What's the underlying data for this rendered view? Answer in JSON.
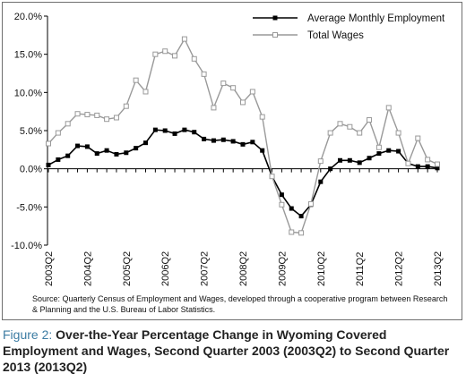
{
  "chart_data": {
    "type": "line",
    "x": [
      "2003Q2",
      "2003Q3",
      "2003Q4",
      "2004Q1",
      "2004Q2",
      "2004Q3",
      "2004Q4",
      "2005Q1",
      "2005Q2",
      "2005Q3",
      "2005Q4",
      "2006Q1",
      "2006Q2",
      "2006Q3",
      "2006Q4",
      "2007Q1",
      "2007Q2",
      "2007Q3",
      "2007Q4",
      "2008Q1",
      "2008Q2",
      "2008Q3",
      "2008Q4",
      "2009Q1",
      "2009Q2",
      "2009Q3",
      "2009Q4",
      "2010Q1",
      "2010Q2",
      "2010Q3",
      "2010Q4",
      "2011Q1",
      "2011Q2",
      "2011Q3",
      "2011Q4",
      "2012Q1",
      "2012Q2",
      "2012Q3",
      "2012Q4",
      "2013Q1",
      "2013Q2"
    ],
    "tick_labels": [
      "2003Q2",
      "2004Q2",
      "2005Q2",
      "2006Q2",
      "2007Q2",
      "2008Q2",
      "2009Q2",
      "2010Q2",
      "2011Q2",
      "2012Q2",
      "2013Q2"
    ],
    "series": [
      {
        "name": "Average Monthly Employment",
        "color": "#000000",
        "marker": "square-filled",
        "values": [
          0.5,
          1.2,
          1.7,
          3.0,
          2.9,
          2.0,
          2.4,
          1.9,
          2.1,
          2.7,
          3.4,
          5.1,
          5.0,
          4.6,
          5.1,
          4.8,
          3.9,
          3.7,
          3.8,
          3.6,
          3.2,
          3.5,
          2.4,
          -1.0,
          -3.4,
          -5.2,
          -6.2,
          -4.7,
          -1.7,
          0.0,
          1.1,
          1.1,
          0.8,
          1.4,
          2.0,
          2.4,
          2.3,
          0.7,
          0.3,
          0.3,
          0.1
        ]
      },
      {
        "name": "Total Wages",
        "color": "#999999",
        "marker": "square-hollow",
        "values": [
          3.3,
          4.7,
          5.9,
          7.2,
          7.1,
          7.0,
          6.5,
          6.7,
          8.2,
          11.6,
          10.1,
          15.0,
          15.4,
          14.8,
          17.0,
          14.4,
          12.4,
          8.0,
          11.2,
          10.6,
          8.7,
          10.1,
          6.8,
          -1.0,
          -4.7,
          -8.3,
          -8.4,
          -4.6,
          1.0,
          4.7,
          5.9,
          5.5,
          4.7,
          6.4,
          2.8,
          8.0,
          4.7,
          0.7,
          4.0,
          1.2,
          0.6
        ]
      }
    ],
    "ylim": [
      -10,
      20
    ],
    "yticks": [
      "-10.0%",
      "-5.0%",
      "0.0%",
      "5.0%",
      "10.0%",
      "15.0%",
      "20.0%"
    ],
    "grid": false,
    "legend_placement": "top-right"
  },
  "source": "Source: Quarterly Census of Employment and Wages, developed through a cooperative program between Research & Planning and the U.S. Bureau of Labor Statistics.",
  "caption": {
    "label": "Figure 2: ",
    "text": "Over-the-Year Percentage Change in Wyoming Covered Employment and Wages, Second Quarter 2003 (2003Q2) to Second Quarter 2013 (2013Q2)"
  },
  "colors": {
    "caption_label": "#3c7ca3",
    "frame": "#6f6f6f"
  }
}
